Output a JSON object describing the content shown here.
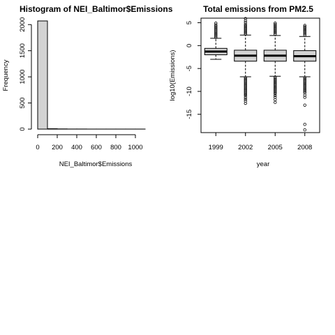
{
  "colors": {
    "fill": "#d3d3d3",
    "stroke": "#000000",
    "background": "#ffffff"
  },
  "chart_data": [
    {
      "type": "bar",
      "subtype": "histogram",
      "title": "Histogram of NEI_Baltimor$Emissions",
      "xlabel": "NEI_Baltimor$Emissions",
      "ylabel": "Frequency",
      "bins": [
        {
          "from": 0,
          "to": 100,
          "value": 2070
        },
        {
          "from": 100,
          "to": 200,
          "value": 8
        },
        {
          "from": 200,
          "to": 300,
          "value": 4
        },
        {
          "from": 300,
          "to": 400,
          "value": 2
        },
        {
          "from": 400,
          "to": 500,
          "value": 2
        },
        {
          "from": 500,
          "to": 600,
          "value": 1
        },
        {
          "from": 600,
          "to": 700,
          "value": 1
        },
        {
          "from": 700,
          "to": 800,
          "value": 1
        },
        {
          "from": 800,
          "to": 900,
          "value": 1
        },
        {
          "from": 900,
          "to": 1000,
          "value": 1
        },
        {
          "from": 1000,
          "to": 1100,
          "value": 1
        }
      ],
      "xticks": [
        "0",
        "200",
        "400",
        "600",
        "800",
        "1000"
      ],
      "yticks": [
        "0",
        "500",
        "1000",
        "1500",
        "2000"
      ],
      "xlim": [
        0,
        1100
      ],
      "ylim": [
        0,
        2070
      ],
      "grid": false
    },
    {
      "type": "boxplot",
      "title": "Total emissions from PM2.5",
      "xlabel": "year",
      "ylabel": "log10(Emissions)",
      "categories": [
        "1999",
        "2002",
        "2005",
        "2008"
      ],
      "yticks": [
        "5",
        "0",
        "-5",
        "-10",
        "-15"
      ],
      "ylim": [
        -19,
        6
      ],
      "grid": false,
      "boxes": [
        {
          "label": "1999",
          "whisker_low": -3.0,
          "q1": -2.0,
          "median": -1.3,
          "q3": -0.6,
          "whisker_high": 1.6,
          "outliers_high": [
            1.8,
            2.1,
            2.4,
            2.7,
            3.0,
            3.3,
            3.6,
            3.9,
            4.2,
            4.5,
            4.9
          ],
          "outliers_low": []
        },
        {
          "label": "2002",
          "whisker_low": -6.8,
          "q1": -3.4,
          "median": -2.2,
          "q3": -1.0,
          "whisker_high": 2.3,
          "outliers_high": [
            2.5,
            2.8,
            3.1,
            3.4,
            3.7,
            4.0,
            4.3,
            4.6,
            5.0,
            5.4,
            5.9
          ],
          "outliers_low": [
            -7.0,
            -7.3,
            -7.6,
            -7.9,
            -8.2,
            -8.5,
            -8.8,
            -9.1,
            -9.4,
            -9.7,
            -10.0,
            -10.3,
            -10.6,
            -10.9,
            -11.3,
            -11.7,
            -12.1,
            -12.6
          ]
        },
        {
          "label": "2005",
          "whisker_low": -6.7,
          "q1": -3.4,
          "median": -2.2,
          "q3": -1.0,
          "whisker_high": 2.2,
          "outliers_high": [
            2.5,
            2.8,
            3.1,
            3.4,
            3.7,
            4.0,
            4.3,
            4.6,
            4.9
          ],
          "outliers_low": [
            -6.9,
            -7.2,
            -7.5,
            -7.8,
            -8.1,
            -8.4,
            -8.7,
            -9.0,
            -9.3,
            -9.6,
            -9.9,
            -10.2,
            -10.5,
            -10.9,
            -11.3,
            -11.8,
            -12.4
          ]
        },
        {
          "label": "2008",
          "whisker_low": -6.8,
          "q1": -3.4,
          "median": -2.3,
          "q3": -1.1,
          "whisker_high": 2.0,
          "outliers_high": [
            2.3,
            2.6,
            2.9,
            3.2,
            3.5,
            3.8,
            4.1,
            4.4
          ],
          "outliers_low": [
            -7.0,
            -7.3,
            -7.6,
            -7.9,
            -8.2,
            -8.5,
            -8.8,
            -9.1,
            -9.4,
            -9.7,
            -10.0,
            -10.3,
            -10.8,
            -11.3,
            -13.0,
            -17.2,
            -18.4
          ]
        }
      ]
    }
  ]
}
